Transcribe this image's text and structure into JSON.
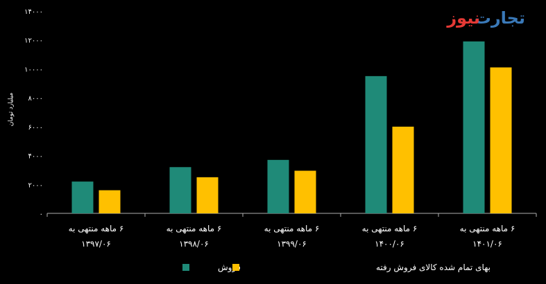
{
  "logo": {
    "text_blue": "تجارت",
    "text_red": "نیوز",
    "color_blue": "#3a79b8",
    "color_red": "#e53935"
  },
  "colors": {
    "background": "#000000",
    "axis": "#b0b0b0",
    "series_1": "#1f8a78",
    "series_2": "#ffc000"
  },
  "chart_data": {
    "type": "bar",
    "title": "",
    "ylabel": "میلیارد تومان",
    "xlabel": "",
    "ylim": [
      0,
      14000
    ],
    "yticks": [
      0,
      2000,
      4000,
      6000,
      8000,
      10000,
      12000,
      14000
    ],
    "ytick_labels": [
      "۰",
      "۲۰۰۰",
      "۴۰۰۰",
      "۶۰۰۰",
      "۸۰۰۰",
      "۱۰۰۰۰",
      "۱۲۰۰۰",
      "۱۴۰۰۰"
    ],
    "grid": false,
    "legend_position": "bottom",
    "categories": [
      {
        "line1": "۶ ماهه منتهی به",
        "line2": "۱۳۹۷/۰۶"
      },
      {
        "line1": "۶ ماهه منتهی به",
        "line2": "۱۳۹۸/۰۶"
      },
      {
        "line1": "۶ ماهه منتهی به",
        "line2": "۱۳۹۹/۰۶"
      },
      {
        "line1": "۶ ماهه منتهی به",
        "line2": "۱۴۰۰/۰۶"
      },
      {
        "line1": "۶ ماهه منتهی به",
        "line2": "۱۴۰۱/۰۶"
      }
    ],
    "series": [
      {
        "name": "فروش",
        "color": "#1f8a78",
        "values": [
          2200,
          3200,
          3700,
          9500,
          11900
        ]
      },
      {
        "name": "بهای تمام شده کالای فروش رفته",
        "color": "#ffc000",
        "values": [
          1600,
          2500,
          2950,
          6000,
          10100
        ]
      }
    ]
  }
}
